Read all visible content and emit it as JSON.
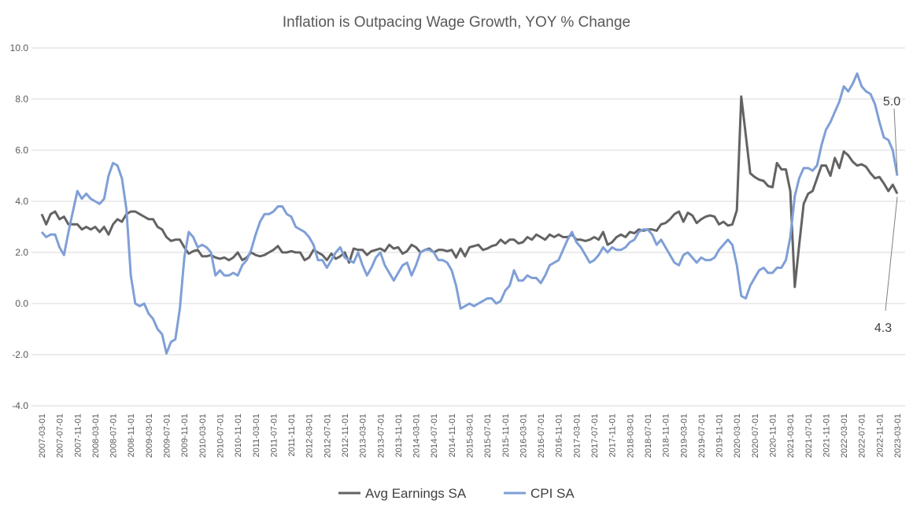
{
  "chart_data": {
    "type": "line",
    "title": "Inflation is Outpacing Wage Growth, YOY % Change",
    "xlabel": "",
    "ylabel": "",
    "ylim": [
      -4,
      10
    ],
    "y_ticks": [
      "10.0",
      "8.0",
      "6.0",
      "4.0",
      "2.0",
      "0.0",
      "-2.0",
      "-4.0"
    ],
    "grid": true,
    "legend_position": "bottom",
    "x_ticks": [
      "2007-03-01",
      "2007-07-01",
      "2007-11-01",
      "2008-03-01",
      "2008-07-01",
      "2008-11-01",
      "2009-03-01",
      "2009-07-01",
      "2009-11-01",
      "2010-03-01",
      "2010-07-01",
      "2010-11-01",
      "2011-03-01",
      "2011-07-01",
      "2011-11-01",
      "2012-03-01",
      "2012-07-01",
      "2012-11-01",
      "2013-03-01",
      "2013-07-01",
      "2013-11-01",
      "2014-03-01",
      "2014-07-01",
      "2014-11-01",
      "2015-03-01",
      "2015-07-01",
      "2015-11-01",
      "2016-03-01",
      "2016-07-01",
      "2016-11-01",
      "2017-03-01",
      "2017-07-01",
      "2017-11-01",
      "2018-03-01",
      "2018-07-01",
      "2018-11-01",
      "2019-03-01",
      "2019-07-01",
      "2019-11-01",
      "2020-03-01",
      "2020-07-01",
      "2020-11-01",
      "2021-03-01",
      "2021-07-01",
      "2021-11-01",
      "2022-03-01",
      "2022-07-01",
      "2022-11-01",
      "2023-03-01"
    ],
    "x_frequency": "monthly",
    "series": [
      {
        "name": "Avg Earnings SA",
        "color": "#636363",
        "values": [
          3.5,
          3.1,
          3.5,
          3.6,
          3.3,
          3.4,
          3.1,
          3.1,
          3.1,
          2.9,
          3.0,
          2.9,
          3.0,
          2.8,
          3.0,
          2.7,
          3.1,
          3.3,
          3.2,
          3.5,
          3.6,
          3.6,
          3.5,
          3.4,
          3.3,
          3.3,
          3.0,
          2.9,
          2.6,
          2.45,
          2.5,
          2.5,
          2.2,
          1.95,
          2.05,
          2.1,
          1.85,
          1.85,
          1.9,
          1.8,
          1.75,
          1.8,
          1.7,
          1.8,
          2.0,
          1.7,
          1.8,
          2.0,
          1.9,
          1.85,
          1.9,
          2.0,
          2.1,
          2.25,
          2.0,
          2.0,
          2.05,
          2.0,
          2.0,
          1.7,
          1.8,
          2.1,
          2.0,
          1.9,
          1.7,
          1.95,
          1.75,
          1.85,
          2.0,
          1.6,
          2.15,
          2.1,
          2.1,
          1.9,
          2.05,
          2.1,
          2.15,
          2.05,
          2.3,
          2.15,
          2.2,
          1.95,
          2.05,
          2.3,
          2.2,
          2.0,
          2.1,
          2.15,
          2.0,
          2.1,
          2.1,
          2.05,
          2.1,
          1.8,
          2.15,
          1.85,
          2.2,
          2.25,
          2.3,
          2.1,
          2.15,
          2.25,
          2.3,
          2.5,
          2.35,
          2.5,
          2.5,
          2.35,
          2.4,
          2.6,
          2.5,
          2.7,
          2.6,
          2.5,
          2.7,
          2.6,
          2.7,
          2.6,
          2.6,
          2.7,
          2.5,
          2.5,
          2.45,
          2.5,
          2.6,
          2.5,
          2.8,
          2.3,
          2.4,
          2.6,
          2.7,
          2.6,
          2.8,
          2.75,
          2.9,
          2.85,
          2.9,
          2.9,
          2.85,
          3.1,
          3.15,
          3.3,
          3.5,
          3.6,
          3.2,
          3.55,
          3.45,
          3.15,
          3.3,
          3.4,
          3.45,
          3.4,
          3.1,
          3.2,
          3.05,
          3.1,
          3.65,
          8.1,
          6.6,
          5.1,
          4.95,
          4.85,
          4.8,
          4.6,
          4.55,
          5.5,
          5.25,
          5.25,
          4.4,
          0.65,
          2.3,
          3.9,
          4.3,
          4.4,
          4.9,
          5.4,
          5.4,
          5.0,
          5.7,
          5.3,
          5.95,
          5.8,
          5.55,
          5.4,
          5.45,
          5.35,
          5.1,
          4.9,
          4.95,
          4.7,
          4.4,
          4.65,
          4.3
        ]
      },
      {
        "name": "CPI SA",
        "color": "#7f9fd6",
        "values": [
          2.8,
          2.6,
          2.7,
          2.7,
          2.2,
          1.9,
          2.8,
          3.6,
          4.4,
          4.1,
          4.3,
          4.1,
          4.0,
          3.9,
          4.1,
          5.0,
          5.5,
          5.4,
          4.9,
          3.7,
          1.1,
          0.0,
          -0.1,
          0.0,
          -0.4,
          -0.6,
          -1.0,
          -1.2,
          -1.95,
          -1.5,
          -1.4,
          -0.2,
          1.8,
          2.8,
          2.6,
          2.2,
          2.3,
          2.2,
          2.0,
          1.1,
          1.3,
          1.1,
          1.1,
          1.2,
          1.1,
          1.5,
          1.7,
          2.1,
          2.7,
          3.2,
          3.5,
          3.5,
          3.6,
          3.8,
          3.8,
          3.5,
          3.4,
          3.0,
          2.9,
          2.8,
          2.6,
          2.3,
          1.7,
          1.7,
          1.4,
          1.7,
          2.0,
          2.2,
          1.8,
          1.7,
          1.6,
          2.0,
          1.5,
          1.1,
          1.4,
          1.8,
          2.0,
          1.5,
          1.2,
          0.9,
          1.2,
          1.5,
          1.6,
          1.1,
          1.5,
          2.0,
          2.1,
          2.1,
          2.0,
          1.7,
          1.7,
          1.6,
          1.3,
          0.7,
          -0.2,
          -0.1,
          0.0,
          -0.1,
          0.0,
          0.1,
          0.2,
          0.2,
          0.0,
          0.1,
          0.5,
          0.7,
          1.3,
          0.9,
          0.9,
          1.1,
          1.0,
          1.0,
          0.8,
          1.1,
          1.5,
          1.6,
          1.7,
          2.1,
          2.5,
          2.8,
          2.4,
          2.2,
          1.9,
          1.6,
          1.7,
          1.9,
          2.2,
          2.0,
          2.2,
          2.1,
          2.1,
          2.2,
          2.4,
          2.5,
          2.8,
          2.9,
          2.9,
          2.7,
          2.3,
          2.5,
          2.2,
          1.9,
          1.6,
          1.5,
          1.9,
          2.0,
          1.8,
          1.6,
          1.8,
          1.7,
          1.7,
          1.8,
          2.1,
          2.3,
          2.5,
          2.3,
          1.5,
          0.3,
          0.2,
          0.7,
          1.0,
          1.3,
          1.4,
          1.2,
          1.2,
          1.4,
          1.4,
          1.7,
          2.6,
          4.2,
          4.9,
          5.3,
          5.3,
          5.2,
          5.4,
          6.2,
          6.8,
          7.1,
          7.5,
          7.9,
          8.5,
          8.3,
          8.6,
          9.0,
          8.5,
          8.3,
          8.2,
          7.8,
          7.1,
          6.5,
          6.4,
          6.0,
          5.0
        ]
      }
    ],
    "annotations": [
      {
        "text": "5.0",
        "series": "CPI SA",
        "point": "last"
      },
      {
        "text": "4.3",
        "series": "Avg Earnings SA",
        "point": "last"
      }
    ]
  }
}
